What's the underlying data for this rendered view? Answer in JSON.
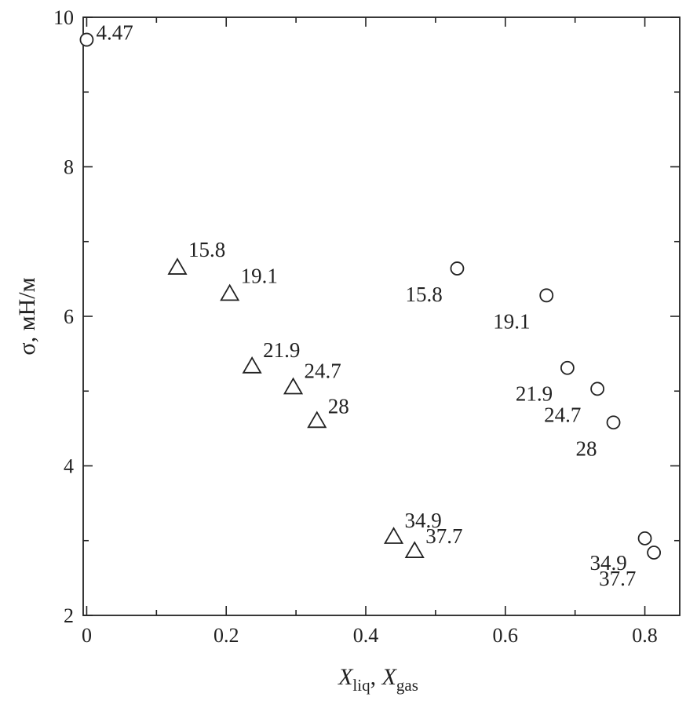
{
  "chart_data": {
    "type": "scatter",
    "xlabel": {
      "main1": "X",
      "sub1": "liq",
      "sep": ", ",
      "main2": "X",
      "sub2": "gas"
    },
    "ylabel": "σ, мН/м",
    "xlim": [
      -0.005,
      0.85
    ],
    "ylim": [
      2,
      10
    ],
    "x_ticks": [
      "0",
      "0.2",
      "0.4",
      "0.6",
      "0.8"
    ],
    "y_ticks": [
      "2",
      "4",
      "6",
      "8",
      "10"
    ],
    "grid": false,
    "legend": "none",
    "series": [
      {
        "marker": "triangle",
        "points": [
          {
            "x": 0.13,
            "y": 6.65,
            "label": "15.8"
          },
          {
            "x": 0.205,
            "y": 6.3,
            "label": "19.1"
          },
          {
            "x": 0.237,
            "y": 5.33,
            "label": "21.9"
          },
          {
            "x": 0.296,
            "y": 5.05,
            "label": "24.7"
          },
          {
            "x": 0.33,
            "y": 4.6,
            "label": "28"
          },
          {
            "x": 0.44,
            "y": 3.05,
            "label": "34.9"
          },
          {
            "x": 0.47,
            "y": 2.86,
            "label": "37.7"
          }
        ]
      },
      {
        "marker": "circle",
        "points": [
          {
            "x": 0.0,
            "y": 9.7,
            "label": "4.47"
          },
          {
            "x": 0.531,
            "y": 6.64,
            "label": "15.8"
          },
          {
            "x": 0.659,
            "y": 6.28,
            "label": "19.1"
          },
          {
            "x": 0.689,
            "y": 5.31,
            "label": "21.9"
          },
          {
            "x": 0.732,
            "y": 5.03,
            "label": "24.7"
          },
          {
            "x": 0.755,
            "y": 4.58,
            "label": "28"
          },
          {
            "x": 0.8,
            "y": 3.03,
            "label": "34.9"
          },
          {
            "x": 0.813,
            "y": 2.84,
            "label": "37.7"
          }
        ]
      }
    ]
  }
}
